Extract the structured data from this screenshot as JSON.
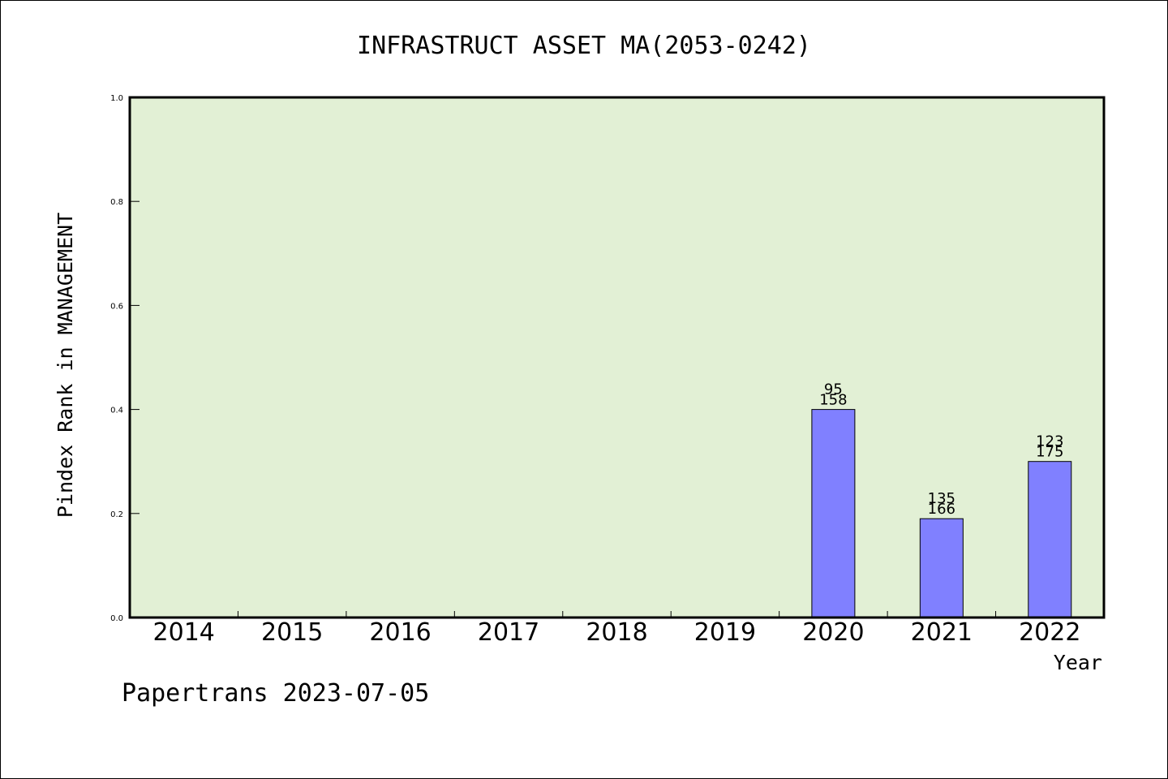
{
  "chart_data": {
    "type": "bar",
    "title": "INFRASTRUCT ASSET MA(2053-0242)",
    "xlabel": "Year",
    "ylabel": "Pindex Rank in MANAGEMENT",
    "categories": [
      "2014",
      "2015",
      "2016",
      "2017",
      "2018",
      "2019",
      "2020",
      "2021",
      "2022"
    ],
    "values": [
      null,
      null,
      null,
      null,
      null,
      null,
      0.4,
      0.19,
      0.3
    ],
    "bar_labels": [
      null,
      null,
      null,
      null,
      null,
      null,
      {
        "top": "95",
        "bottom": "158"
      },
      {
        "top": "135",
        "bottom": "166"
      },
      {
        "top": "123",
        "bottom": "175"
      }
    ],
    "ylim": [
      0,
      1.0
    ],
    "yticks": [
      "0.0",
      "0.2",
      "0.4",
      "0.6",
      "0.8",
      "1.0"
    ],
    "ytick_values": [
      0,
      0.2,
      0.4,
      0.6,
      0.8,
      1.0
    ],
    "grid": false,
    "colors": {
      "plot_background": "#e2f0d5",
      "bar_fill": "#8080ff",
      "bar_stroke": "#000000",
      "axis": "#000000"
    }
  },
  "footer": {
    "credit": "Papertrans 2023-07-05"
  }
}
